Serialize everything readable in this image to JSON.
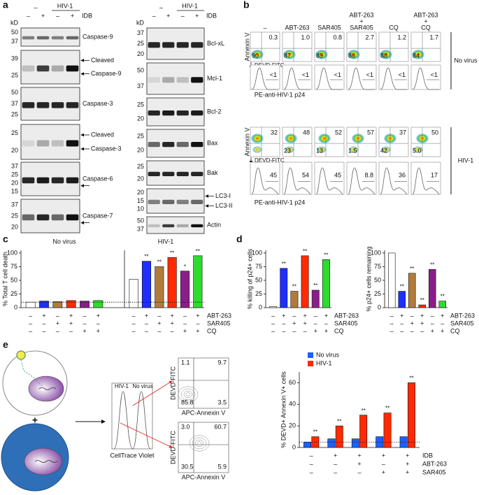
{
  "panel_labels": [
    "a",
    "b",
    "c",
    "d",
    "e"
  ],
  "blots_a": {
    "kd_unit": "kD",
    "group_labels": [
      "–",
      "HIV-1"
    ],
    "lane_signs": [
      "–",
      "+",
      "–",
      "+"
    ],
    "treatment": "IDB",
    "left": [
      {
        "kd": [
          50,
          37
        ],
        "labels": [
          "Caspase-9"
        ]
      },
      {
        "kd": [
          39,
          25
        ],
        "labels": [
          "Cleaved",
          "Caspase-9"
        ]
      },
      {
        "kd": [
          50,
          37,
          25
        ],
        "labels": [
          "Caspase-3"
        ]
      },
      {
        "kd": [
          25,
          20
        ],
        "labels": [
          "Cleaved",
          "Caspase-3"
        ]
      },
      {
        "kd": [
          37,
          25,
          20,
          15
        ],
        "labels": [
          "Caspase-6"
        ]
      },
      {
        "kd": [
          37,
          25,
          20
        ],
        "labels": [
          "Caspase-7"
        ]
      }
    ],
    "right": [
      {
        "kd": [
          37,
          25,
          20
        ],
        "labels": [
          "Bcl-xL"
        ]
      },
      {
        "kd": [
          50,
          37
        ],
        "labels": [
          "Mcl-1"
        ]
      },
      {
        "kd": [
          25,
          20
        ],
        "labels": [
          "Bcl-2"
        ]
      },
      {
        "kd": [
          25,
          20
        ],
        "labels": [
          "Bax"
        ]
      },
      {
        "kd": [
          25,
          20
        ],
        "labels": [
          "Bak"
        ]
      },
      {
        "kd": [
          20,
          15,
          10
        ],
        "labels": [
          "LC3-I",
          "LC3-II"
        ]
      },
      {
        "kd": [
          50,
          37
        ],
        "labels": [
          "Actin"
        ]
      }
    ]
  },
  "flow_b": {
    "columns": [
      [
        "–"
      ],
      [
        "ABT-263"
      ],
      [
        "SAR405"
      ],
      [
        "ABT-263",
        "+",
        "SAR405"
      ],
      [
        "CQ"
      ],
      [
        "ABT-263",
        "+",
        "CQ"
      ]
    ],
    "y_label": "Annexin V",
    "x_label": "DEVD-FITC",
    "hist_label": "PE-anti-HIV-1 p24",
    "rows": [
      {
        "label": "No virus",
        "quadrants": [
          {
            "ur": "0.3",
            "ll": "90"
          },
          {
            "ur": "1.0",
            "ll": "87"
          },
          {
            "ur": "0.8",
            "ll": "89"
          },
          {
            "ur": "2.7",
            "ll": "86"
          },
          {
            "ur": "1.2",
            "ll": "88"
          },
          {
            "ur": "1.7",
            "ll": "84"
          }
        ],
        "histogram": [
          "<1",
          "<1",
          "<1",
          "<1",
          "<1",
          "<1"
        ]
      },
      {
        "label": "HIV-1",
        "quadrants": [
          {
            "ur": "32"
          },
          {
            "ur": "48",
            "ll": "23"
          },
          {
            "ur": "52",
            "ll": "13"
          },
          {
            "ur": "57",
            "ll": "1.5"
          },
          {
            "ur": "37",
            "ll": "42"
          },
          {
            "ur": "50",
            "ll": "5.0"
          }
        ],
        "histogram": [
          "45",
          "54",
          "45",
          "8.8",
          "36",
          "17"
        ]
      }
    ]
  },
  "flow_e": {
    "plus": "+",
    "histogram_labels": [
      "HIV-1",
      "No virus"
    ],
    "histogram_x_label": "CellTrace Violet",
    "y_label": "DEVD-FITC",
    "x_label": "APC-Annexin V",
    "contours": [
      {
        "ul": "1.1",
        "ur": "9.7",
        "ll": "85.8",
        "lr": "3.5"
      },
      {
        "ul": "3.0",
        "ur": "60.7",
        "ll": "30.5",
        "lr": "5.9"
      }
    ]
  },
  "chart_data": [
    {
      "type": "bar",
      "ylabel": "% Total T cell death",
      "ylim": [
        0,
        105
      ],
      "yticks": [
        0,
        25,
        50,
        75,
        100
      ],
      "reference_line": 10,
      "series": [
        {
          "name": "No virus",
          "colors": [
            "#ffffff",
            "#1f2fff",
            "#b27b3c",
            "#ff2a00",
            "#8b1d8b",
            "#2edc2e"
          ],
          "values": [
            10,
            12,
            11,
            13,
            12,
            13
          ]
        },
        {
          "name": "HIV-1",
          "colors": [
            "#ffffff",
            "#1f2fff",
            "#b27b3c",
            "#ff2a00",
            "#8b1d8b",
            "#2edc2e"
          ],
          "values": [
            52,
            85,
            75,
            92,
            67,
            95
          ],
          "annotations": [
            null,
            "**",
            "**",
            "**",
            "*",
            "**"
          ]
        }
      ],
      "conditions": [
        {
          "name": "ABT-263",
          "signs": [
            "–",
            "+",
            "–",
            "+",
            "–",
            "+",
            "–",
            "+",
            "–",
            "+",
            "–",
            "+"
          ]
        },
        {
          "name": "SAR405",
          "signs": [
            "–",
            "–",
            "+",
            "+",
            "–",
            "–",
            "–",
            "–",
            "+",
            "+",
            "–",
            "–"
          ]
        },
        {
          "name": "CQ",
          "signs": [
            "–",
            "–",
            "–",
            "–",
            "+",
            "+",
            "–",
            "–",
            "–",
            "–",
            "+",
            "+"
          ]
        }
      ]
    },
    {
      "type": "bar",
      "ylabel": "% killing of p24+ cells",
      "ylim": [
        0,
        105
      ],
      "yticks": [
        0,
        25,
        50,
        75,
        100
      ],
      "series": [
        {
          "colors": [
            "#ffffff",
            "#1f2fff",
            "#b27b3c",
            "#ff2a00",
            "#8b1d8b",
            "#2edc2e"
          ],
          "values": [
            2,
            72,
            30,
            95,
            32,
            88
          ],
          "annotations": [
            null,
            "**",
            "**",
            "**",
            "**",
            "**"
          ]
        }
      ],
      "conditions": [
        {
          "name": "ABT-263",
          "signs": [
            "–",
            "+",
            "–",
            "+",
            "–",
            "+"
          ]
        },
        {
          "name": "SAR405",
          "signs": [
            "–",
            "–",
            "+",
            "+",
            "–",
            "–"
          ]
        },
        {
          "name": "CQ",
          "signs": [
            "–",
            "–",
            "–",
            "–",
            "+",
            "+"
          ]
        }
      ]
    },
    {
      "type": "bar",
      "ylabel": "% p24+ cells remaining",
      "ylim": [
        0,
        105
      ],
      "yticks": [
        0,
        25,
        50,
        75,
        100
      ],
      "series": [
        {
          "colors": [
            "#ffffff",
            "#1f2fff",
            "#b27b3c",
            "#ff2a00",
            "#8b1d8b",
            "#2edc2e"
          ],
          "values": [
            100,
            30,
            63,
            5,
            70,
            12
          ],
          "annotations": [
            null,
            "**",
            "**",
            "**",
            "**",
            "**"
          ]
        }
      ],
      "conditions": [
        {
          "name": "ABT-263",
          "signs": [
            "–",
            "+",
            "–",
            "+",
            "–",
            "+"
          ]
        },
        {
          "name": "SAR405",
          "signs": [
            "–",
            "–",
            "+",
            "+",
            "–",
            "–"
          ]
        },
        {
          "name": "CQ",
          "signs": [
            "–",
            "–",
            "–",
            "–",
            "+",
            "+"
          ]
        }
      ]
    },
    {
      "type": "grouped_bar",
      "ylabel": "% DEVD+ Annexin V+ cells",
      "ylim": [
        0,
        70
      ],
      "yticks": [
        0,
        20,
        40,
        60
      ],
      "reference_line": 5,
      "legend": true,
      "series": [
        {
          "name": "No virus",
          "color": "#1f5fff",
          "values": [
            5,
            8,
            8,
            10,
            10
          ]
        },
        {
          "name": "HIV-1",
          "color": "#ff2a00",
          "values": [
            10,
            20,
            30,
            32,
            60
          ],
          "annotations": [
            "**",
            "**",
            "**",
            "**",
            "**"
          ]
        }
      ],
      "conditions": [
        {
          "name": "IDB",
          "signs": [
            "–",
            "+",
            "+",
            "+",
            "+"
          ]
        },
        {
          "name": "ABT-263",
          "signs": [
            "–",
            "–",
            "+",
            "–",
            "+"
          ]
        },
        {
          "name": "SAR405",
          "signs": [
            "–",
            "–",
            "–",
            "+",
            "+"
          ]
        }
      ]
    }
  ]
}
